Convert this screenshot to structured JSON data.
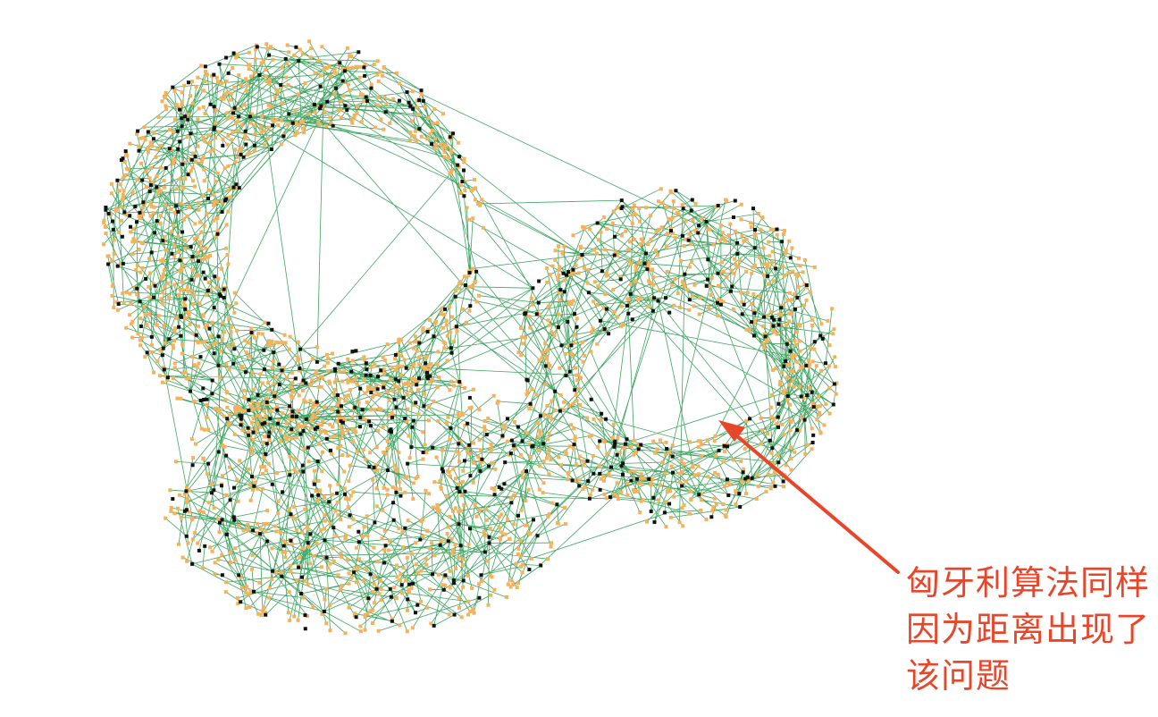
{
  "figure": {
    "description_colors": {
      "background": "#ffffff",
      "source_points": "#f5b25a",
      "target_points": "#111111",
      "matching_lines": "#1e9448",
      "annotation": "#e8462b"
    },
    "icons": [
      "arrow-icon"
    ]
  },
  "annotation": {
    "lines": [
      "匈牙利算法同样",
      "因为距离出现了",
      "该问题"
    ]
  }
}
